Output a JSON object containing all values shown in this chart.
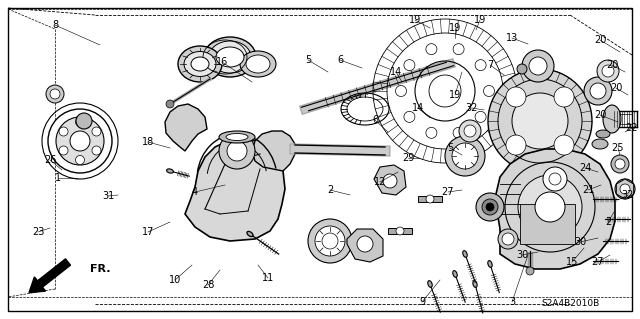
{
  "diagram_code": "S2A4B2010B",
  "background_color": "#ffffff",
  "line_color": "#000000",
  "fig_width": 6.4,
  "fig_height": 3.19,
  "dpi": 100,
  "gray_fill": "#cccccc",
  "dark_gray": "#888888",
  "light_gray": "#e0e0e0"
}
